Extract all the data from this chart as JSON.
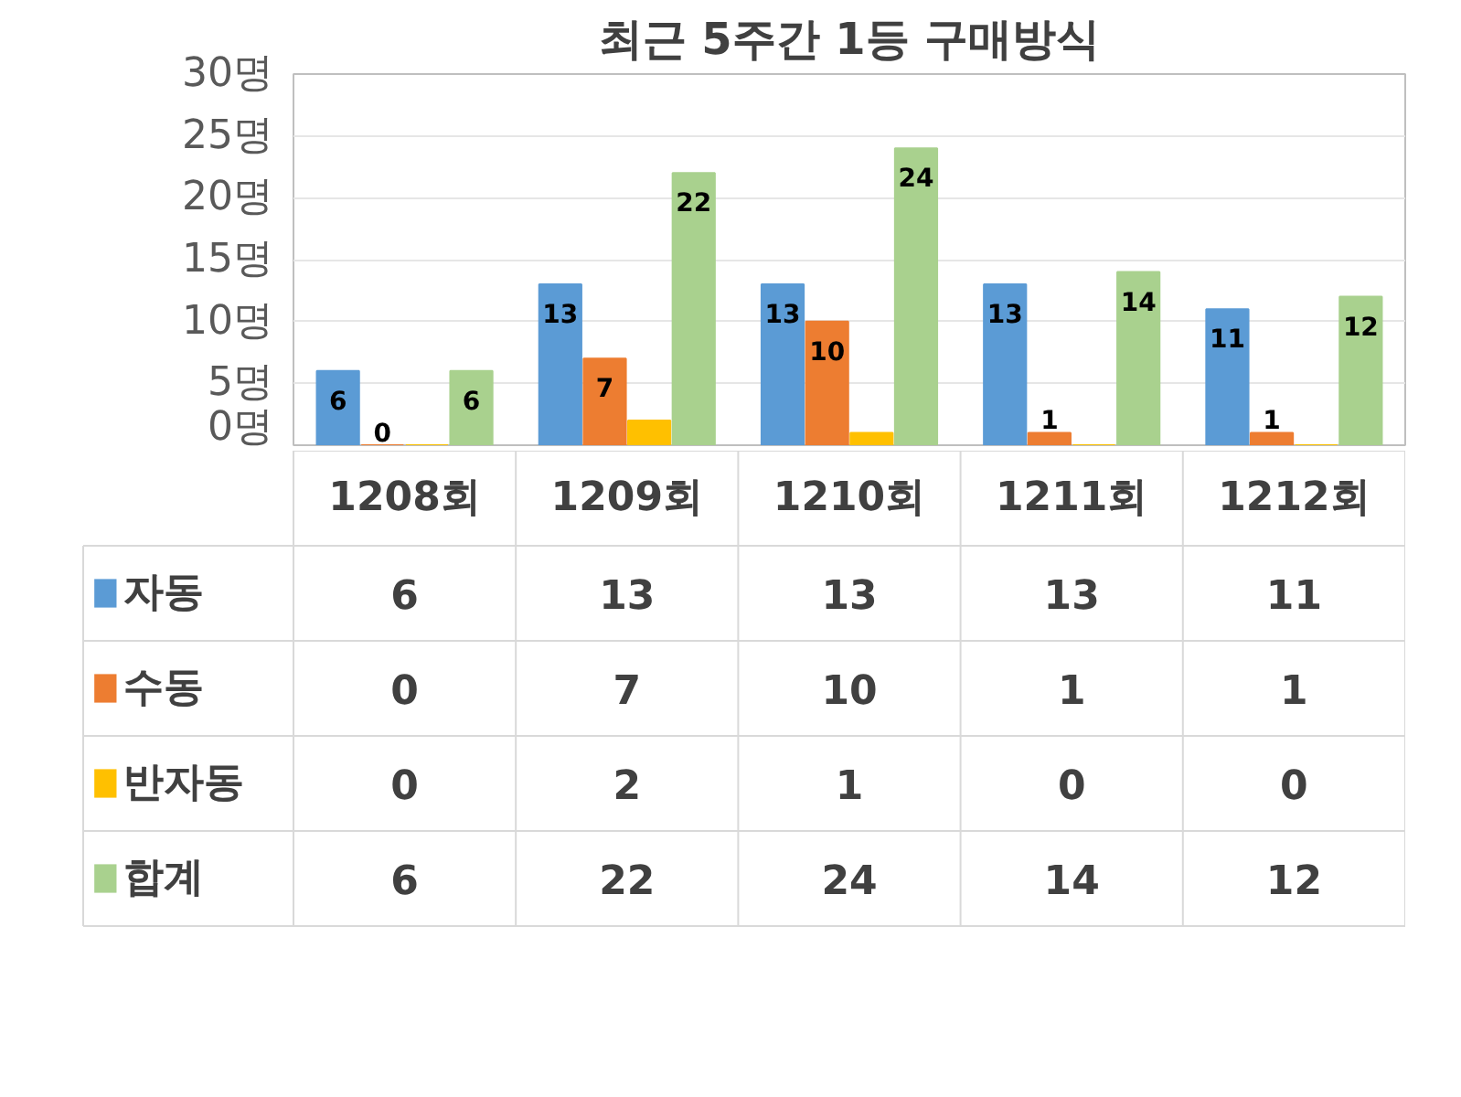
{
  "chart_data": [
    {
      "type": "bar",
      "title": "최근 5주간 1등 구매방식",
      "categories": [
        "1208회",
        "1209회",
        "1210회",
        "1211회",
        "1212회"
      ],
      "series": [
        {
          "name": "자동",
          "color": "#5b9bd5",
          "values": [
            6,
            13,
            13,
            13,
            11
          ],
          "value_labels": [
            "6",
            "13",
            "13",
            "13",
            "11"
          ]
        },
        {
          "name": "수동",
          "color": "#ed7d31",
          "values": [
            0,
            7,
            10,
            1,
            1
          ],
          "value_labels": [
            "0",
            "7",
            "10",
            "1",
            "1"
          ]
        },
        {
          "name": "반자동",
          "color": "#ffc000",
          "values": [
            0,
            2,
            1,
            0,
            0
          ],
          "value_labels": [
            null,
            null,
            null,
            null,
            null
          ]
        },
        {
          "name": "합계",
          "color": "#a9d18e",
          "values": [
            6,
            22,
            24,
            14,
            12
          ],
          "value_labels": [
            "6",
            "22",
            "24",
            "14",
            "12"
          ]
        }
      ],
      "ylim": [
        0,
        30
      ],
      "yticks": [
        {
          "value": 0,
          "label": "0명"
        },
        {
          "value": 5,
          "label": "5명"
        },
        {
          "value": 10,
          "label": "10명"
        },
        {
          "value": 15,
          "label": "15명"
        },
        {
          "value": 20,
          "label": "20명"
        },
        {
          "value": 25,
          "label": "25명"
        },
        {
          "value": 30,
          "label": "30명"
        }
      ],
      "grid": "y",
      "legend": "bottom left"
    },
    {
      "type": "heatmap",
      "categories": [
        null,
        null,
        null,
        null,
        null
      ],
      "y_categories": [
        null,
        null,
        null,
        null
      ],
      "cells": [
        [
          6,
          13,
          13,
          13,
          11
        ],
        [
          0,
          7,
          10,
          1,
          1
        ],
        [
          0,
          2,
          1,
          0,
          0
        ],
        [
          6,
          22,
          24,
          14,
          12
        ]
      ],
      "data_labels": true
    }
  ]
}
